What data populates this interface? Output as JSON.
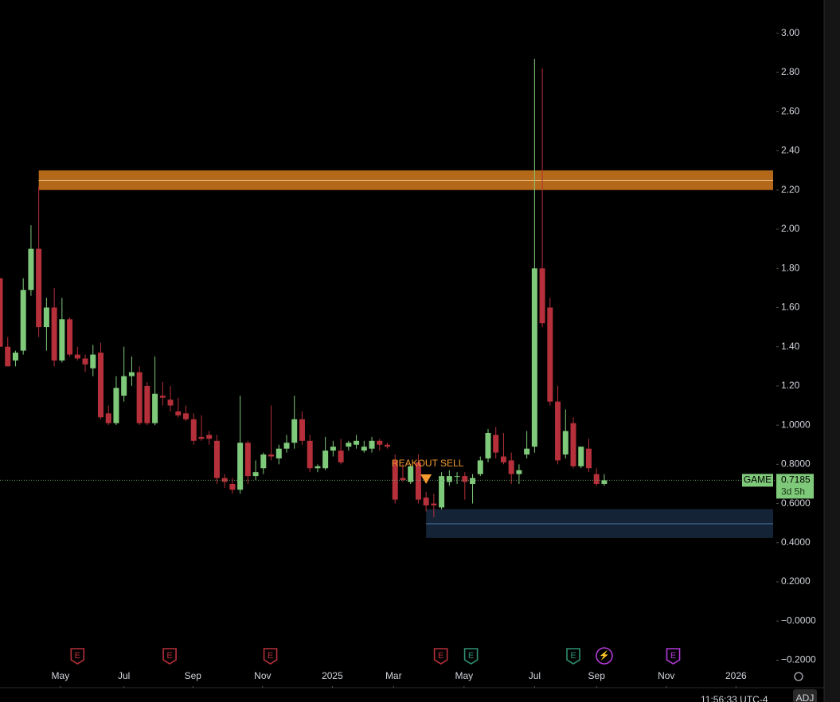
{
  "chart_data": {
    "type": "candlestick",
    "series": [
      {
        "name": "GAME",
        "up_color": "#7fc97a",
        "down_color": "#b5303a",
        "x": [
          0,
          1,
          2,
          3,
          4,
          5,
          6,
          7,
          8,
          9,
          10,
          11,
          12,
          13,
          14,
          15,
          16,
          17,
          18,
          19,
          20,
          21,
          22,
          23,
          24,
          25,
          26,
          27,
          28,
          29,
          30,
          31,
          32,
          33,
          34,
          35,
          36,
          37,
          38,
          39,
          40,
          41,
          42,
          43,
          44,
          45,
          46,
          47,
          48,
          49,
          50,
          51,
          52,
          53,
          54,
          55,
          56,
          57,
          58,
          59,
          60,
          61,
          62,
          63,
          64,
          65,
          66,
          67,
          68,
          69,
          70,
          71,
          72,
          73,
          74,
          75,
          76,
          77,
          78
        ],
        "open": [
          1.75,
          1.4,
          1.33,
          1.38,
          1.69,
          1.9,
          1.5,
          1.6,
          1.33,
          1.54,
          1.36,
          1.34,
          1.29,
          1.37,
          1.06,
          1.01,
          1.15,
          1.25,
          1.27,
          1.2,
          1.01,
          1.15,
          1.13,
          1.07,
          1.06,
          1.03,
          0.94,
          0.95,
          0.92,
          0.73,
          0.7,
          0.67,
          0.91,
          0.74,
          0.78,
          0.85,
          0.83,
          0.88,
          0.91,
          1.03,
          0.92,
          0.78,
          0.78,
          0.87,
          0.87,
          0.89,
          0.9,
          0.87,
          0.88,
          0.92,
          0.9,
          0.82,
          0.73,
          0.71,
          0.81,
          0.63,
          0.6,
          0.58,
          0.71,
          0.74,
          0.74,
          0.7,
          0.75,
          0.83,
          0.95,
          0.84,
          0.82,
          0.75,
          0.85,
          0.89,
          1.8,
          1.6,
          1.12,
          0.85,
          1.01,
          0.79,
          0.88,
          0.75,
          0.7
        ],
        "high": [
          1.75,
          1.45,
          1.38,
          1.75,
          2.02,
          2.22,
          1.65,
          1.7,
          1.65,
          1.55,
          1.4,
          1.36,
          1.41,
          1.42,
          1.1,
          1.25,
          1.4,
          1.35,
          1.3,
          1.22,
          1.35,
          1.22,
          1.2,
          1.14,
          1.1,
          1.06,
          1.05,
          0.97,
          0.95,
          0.75,
          0.73,
          1.15,
          0.92,
          0.82,
          0.86,
          1.1,
          0.9,
          0.95,
          1.15,
          1.07,
          0.95,
          0.8,
          0.94,
          0.92,
          0.93,
          0.92,
          0.95,
          0.92,
          0.94,
          0.93,
          0.91,
          0.85,
          0.8,
          0.8,
          0.85,
          0.66,
          0.65,
          0.76,
          0.77,
          0.76,
          0.76,
          0.75,
          0.84,
          0.98,
          0.99,
          0.96,
          0.86,
          0.8,
          0.97,
          2.87,
          2.82,
          1.65,
          1.2,
          1.08,
          1.04,
          0.89,
          0.93,
          0.78,
          0.75
        ],
        "low": [
          1.4,
          1.3,
          1.3,
          1.36,
          1.66,
          1.45,
          1.38,
          1.3,
          1.32,
          1.35,
          1.33,
          1.27,
          1.25,
          1.03,
          1.0,
          1.0,
          1.12,
          1.2,
          1.0,
          1.0,
          1.0,
          1.1,
          1.07,
          1.04,
          1.02,
          0.9,
          0.92,
          0.9,
          0.7,
          0.68,
          0.65,
          0.65,
          0.7,
          0.72,
          0.75,
          0.82,
          0.8,
          0.86,
          0.88,
          0.9,
          0.76,
          0.76,
          0.77,
          0.84,
          0.8,
          0.87,
          0.88,
          0.86,
          0.86,
          0.87,
          0.88,
          0.6,
          0.71,
          0.7,
          0.6,
          0.56,
          0.53,
          0.57,
          0.69,
          0.7,
          0.62,
          0.6,
          0.74,
          0.81,
          0.83,
          0.8,
          0.7,
          0.7,
          0.83,
          0.86,
          1.5,
          1.1,
          0.8,
          0.83,
          0.78,
          0.78,
          0.76,
          0.69,
          0.69
        ],
        "close": [
          1.4,
          1.3,
          1.37,
          1.69,
          1.9,
          1.5,
          1.6,
          1.33,
          1.54,
          1.36,
          1.34,
          1.31,
          1.36,
          1.04,
          1.01,
          1.19,
          1.25,
          1.27,
          1.01,
          1.01,
          1.16,
          1.14,
          1.1,
          1.05,
          1.03,
          0.92,
          0.93,
          0.93,
          0.73,
          0.71,
          0.67,
          0.91,
          0.74,
          0.76,
          0.85,
          0.84,
          0.88,
          0.91,
          1.03,
          0.92,
          0.78,
          0.79,
          0.87,
          0.89,
          0.81,
          0.91,
          0.92,
          0.89,
          0.92,
          0.9,
          0.89,
          0.62,
          0.72,
          0.79,
          0.62,
          0.59,
          0.59,
          0.74,
          0.74,
          0.74,
          0.71,
          0.73,
          0.82,
          0.96,
          0.86,
          0.81,
          0.75,
          0.77,
          0.88,
          1.8,
          1.52,
          1.12,
          0.82,
          0.97,
          0.79,
          0.89,
          0.78,
          0.7,
          0.7185
        ]
      }
    ],
    "countdown": "3d 5h",
    "xlim": [
      0,
      100
    ],
    "xticks": [
      {
        "value": 7.8,
        "label": "May"
      },
      {
        "value": 16,
        "label": "Jul"
      },
      {
        "value": 24.9,
        "label": "Sep"
      },
      {
        "value": 33.9,
        "label": "Nov"
      },
      {
        "value": 42.9,
        "label": "2025"
      },
      {
        "value": 50.8,
        "label": "Mar"
      },
      {
        "value": 59.9,
        "label": "May"
      },
      {
        "value": 69,
        "label": "Jul"
      },
      {
        "value": 77,
        "label": "Sep"
      },
      {
        "value": 86,
        "label": "Nov"
      },
      {
        "value": 95,
        "label": "2026"
      }
    ],
    "ylim": [
      -0.33,
      3.17
    ],
    "yticks": [
      {
        "value": 3.0,
        "label": "3.00"
      },
      {
        "value": 2.8,
        "label": "2.80"
      },
      {
        "value": 2.6,
        "label": "2.60"
      },
      {
        "value": 2.4,
        "label": "2.40"
      },
      {
        "value": 2.2,
        "label": "2.20"
      },
      {
        "value": 2.0,
        "label": "2.00"
      },
      {
        "value": 1.8,
        "label": "1.80"
      },
      {
        "value": 1.6,
        "label": "1.60"
      },
      {
        "value": 1.4,
        "label": "1.40"
      },
      {
        "value": 1.2,
        "label": "1.20"
      },
      {
        "value": 1.0,
        "label": "1.0000"
      },
      {
        "value": 0.8,
        "label": "0.8000"
      },
      {
        "value": 0.6,
        "label": "0.6000"
      },
      {
        "value": 0.4,
        "label": "0.4000"
      },
      {
        "value": 0.2,
        "label": "0.2000"
      },
      {
        "value": 0,
        "label": "−0.0000"
      },
      {
        "value": -0.2,
        "label": "−0.2000"
      }
    ],
    "zones": [
      {
        "low": 2.2,
        "high": 2.3,
        "mid": 2.25,
        "x_start": 5,
        "color": "#c6741c"
      },
      {
        "low": 0.424,
        "high": 0.571,
        "mid": 0.497,
        "x_start": 55,
        "color": "#17273d"
      }
    ],
    "signal": {
      "label": "REAKOUT SELL",
      "x": 55,
      "y": 0.72,
      "color": "#f29a2e"
    },
    "events": [
      {
        "x": 10.0,
        "label": "E",
        "color": "#b5303a"
      },
      {
        "x": 21.9,
        "label": "E",
        "color": "#b5303a"
      },
      {
        "x": 34.9,
        "label": "E",
        "color": "#b5303a"
      },
      {
        "x": 56.9,
        "label": "E",
        "color": "#b5303a"
      },
      {
        "x": 60.8,
        "label": "E",
        "color": "#2f8f72"
      },
      {
        "x": 74.0,
        "label": "E",
        "color": "#2f8f72"
      },
      {
        "x": 78.0,
        "label": "⚡",
        "color": "#b13ad6"
      },
      {
        "x": 86.9,
        "label": "E",
        "color": "#b13ad6"
      }
    ],
    "time": "11:56:33 UTC-4",
    "adj": "ADJ"
  }
}
